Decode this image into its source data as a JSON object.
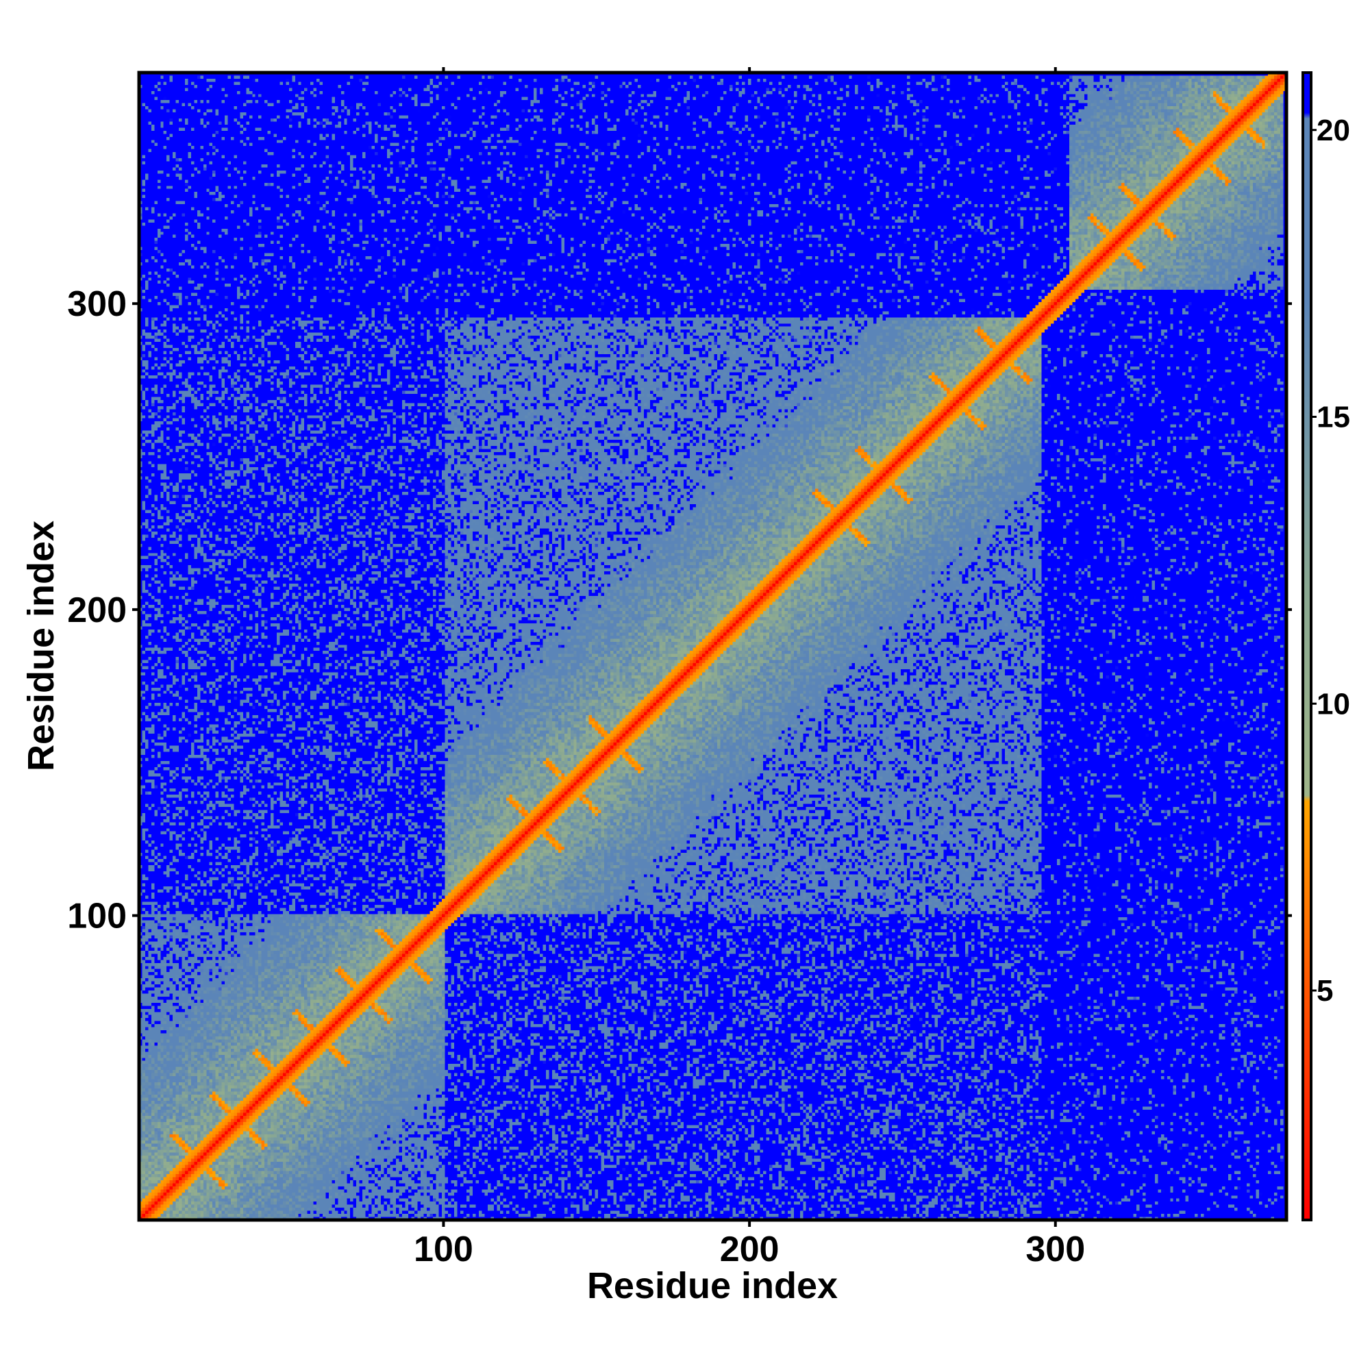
{
  "chart_data": {
    "type": "heatmap",
    "title": "",
    "xlabel": "Residue index",
    "ylabel": "Residue index",
    "n_residues": 375,
    "xlim": [
      1,
      375
    ],
    "ylim": [
      1,
      375
    ],
    "x_ticks": [
      100,
      200,
      300
    ],
    "y_ticks": [
      100,
      200,
      300
    ],
    "x_tick_labels": [
      "100",
      "200",
      "300"
    ],
    "y_tick_labels": [
      "100",
      "200",
      "300"
    ],
    "grid": false,
    "colorbar": {
      "position": "right",
      "range": [
        1,
        21
      ],
      "ticks": [
        5,
        10,
        15,
        20
      ],
      "tick_labels": [
        "5",
        "10",
        "15",
        "20"
      ],
      "stops": [
        {
          "value": 1,
          "color": "#ff0000"
        },
        {
          "value": 5,
          "color": "#ff5500"
        },
        {
          "value": 8.3,
          "color": "#ffa500"
        },
        {
          "value": 8.4,
          "color": "#9fb58a"
        },
        {
          "value": 12,
          "color": "#8aa891"
        },
        {
          "value": 17,
          "color": "#5b85b8"
        },
        {
          "value": 20.2,
          "color": "#5b85b8"
        },
        {
          "value": 20.3,
          "color": "#0000ff"
        },
        {
          "value": 21,
          "color": "#0000ff"
        }
      ]
    },
    "domains": [
      {
        "start": 1,
        "end": 100
      },
      {
        "start": 101,
        "end": 295
      },
      {
        "start": 305,
        "end": 375
      }
    ],
    "helix_starts_domain1": [
      20,
      33,
      47,
      60,
      74,
      87
    ],
    "helix_starts_domain2": [
      130,
      142,
      156,
      230,
      244,
      268,
      283
    ],
    "helix_starts_domain3": [
      320,
      330,
      348,
      360
    ],
    "colors": {
      "background": "#0000ff",
      "near_contact": "#5b85b8",
      "contact": "#ffa500",
      "diagonal": "#ff0000"
    }
  }
}
